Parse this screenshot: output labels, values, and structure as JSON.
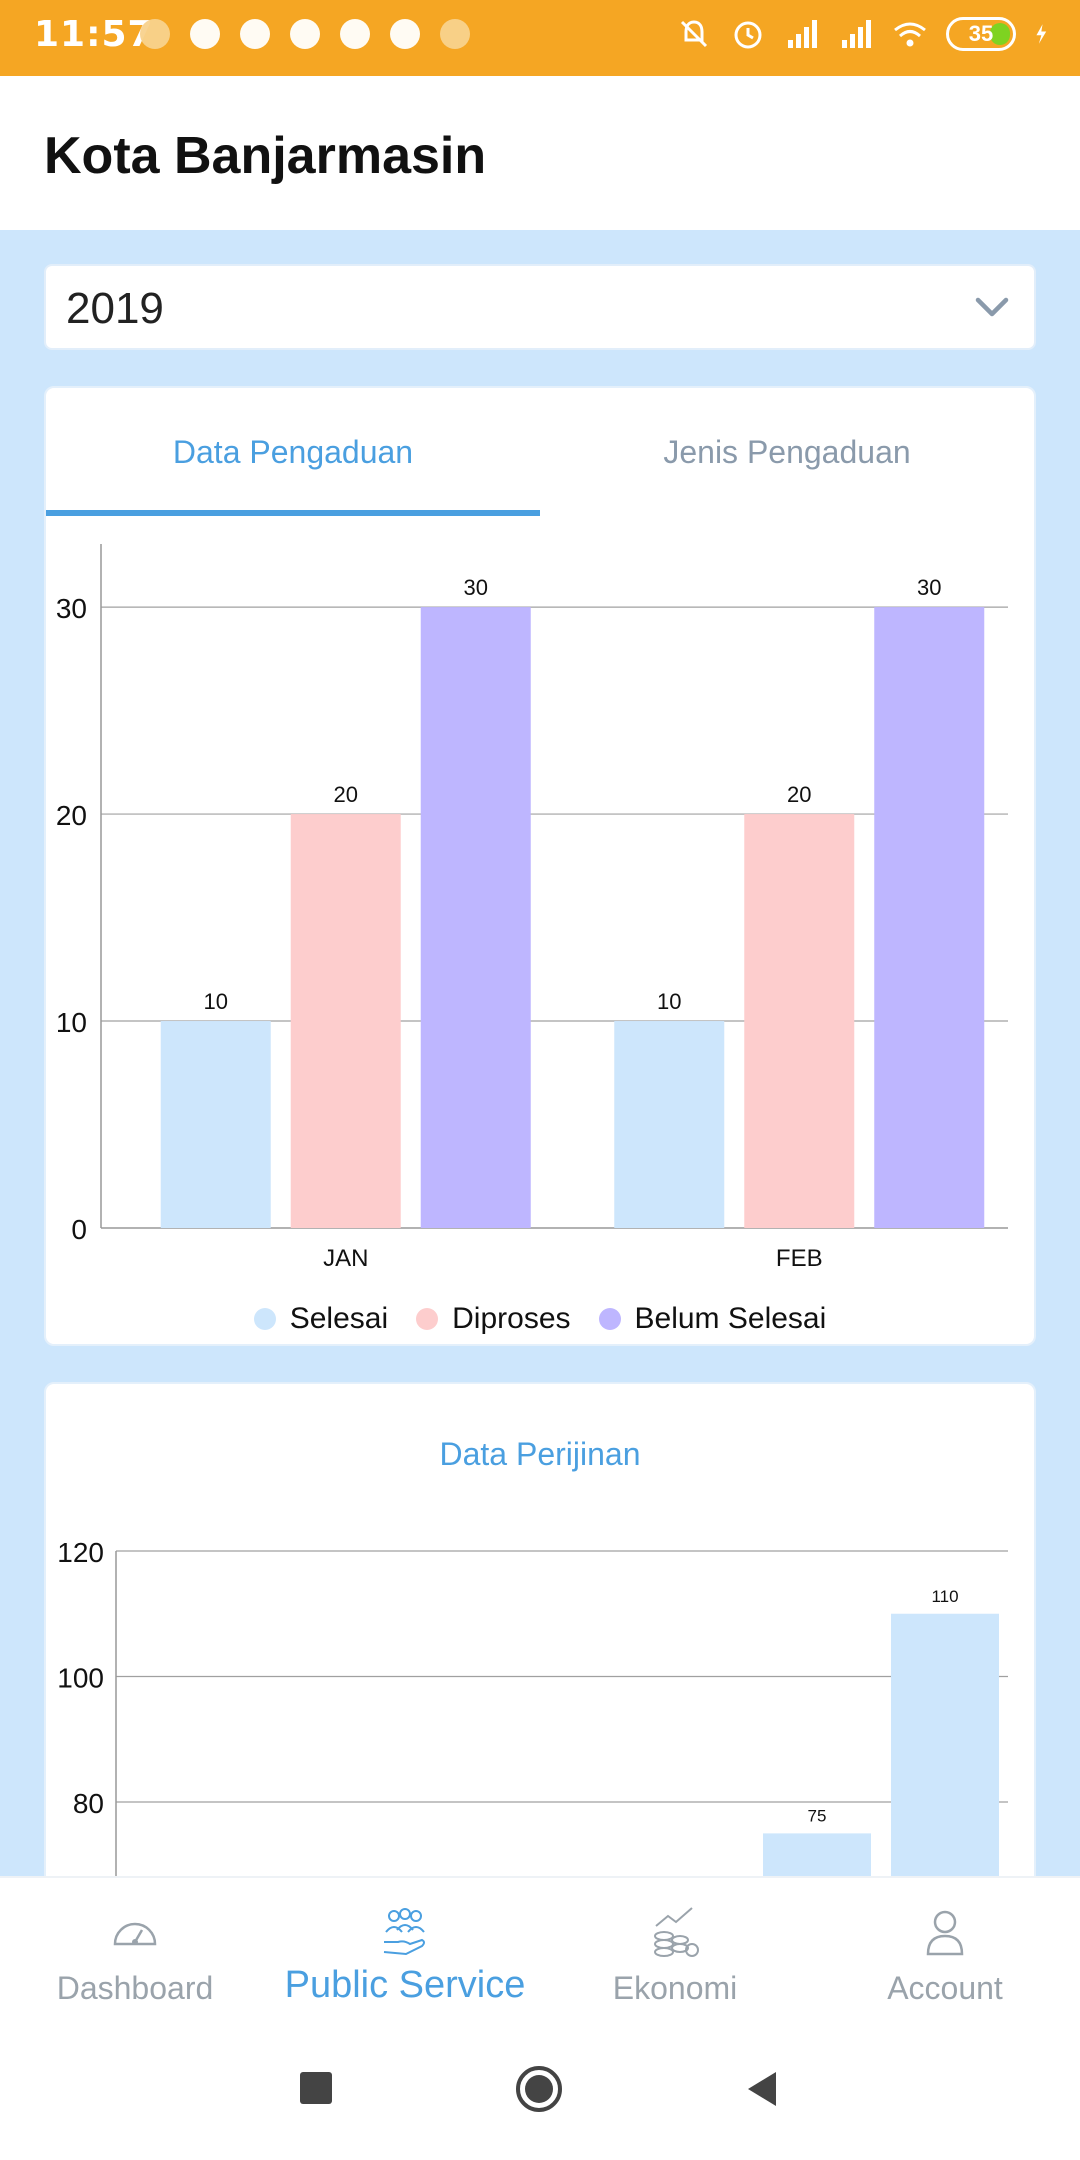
{
  "status_bar": {
    "time": "11:57",
    "battery": "35",
    "accent": "#f5a623"
  },
  "app_bar": {
    "title": "Kota Banjarmasin"
  },
  "year_select": {
    "value": "2019",
    "icon": "chevron-down-icon"
  },
  "tabs": [
    {
      "label": "Data Pengaduan",
      "active": true
    },
    {
      "label": "Jenis Pengaduan",
      "active": false
    }
  ],
  "chart_data": [
    {
      "type": "bar",
      "categories": [
        "JAN",
        "FEB"
      ],
      "series": [
        {
          "name": "Selesai",
          "values": [
            10,
            10
          ],
          "color": "#cde6fc"
        },
        {
          "name": "Diproses",
          "values": [
            20,
            20
          ],
          "color": "#fdcdcd"
        },
        {
          "name": "Belum Selesai",
          "values": [
            30,
            30
          ],
          "color": "#beb6ff"
        }
      ],
      "y_ticks": [
        0,
        10,
        20,
        30
      ],
      "ylim": [
        0,
        33
      ],
      "grid": true,
      "legend_position": "bottom",
      "data_labels": true
    },
    {
      "type": "bar",
      "title": "Data Perijinan",
      "series": [
        {
          "values": [
            75,
            110
          ],
          "color": "#cde6fc"
        }
      ],
      "y_ticks": [
        80,
        100,
        120
      ],
      "ylim": [
        68,
        120
      ],
      "grid": true,
      "data_labels": true
    }
  ],
  "bottom_nav": [
    {
      "label": "Dashboard",
      "icon": "speedometer-icon",
      "active": false
    },
    {
      "label": "Public Service",
      "icon": "people-hand-icon",
      "active": true
    },
    {
      "label": "Ekonomi",
      "icon": "coins-chart-icon",
      "active": false
    },
    {
      "label": "Account",
      "icon": "user-icon",
      "active": false
    }
  ],
  "colors": {
    "accent_blue": "#4a9fe0",
    "background": "#cde6fc",
    "inactive_text": "#9aa3ab"
  }
}
